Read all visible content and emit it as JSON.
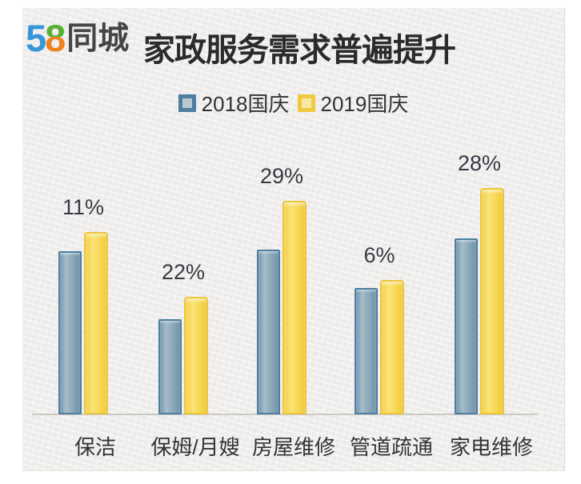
{
  "logo": {
    "part1": "5",
    "part2": "8",
    "part3": "同城"
  },
  "title": "家政服务需求普遍提升",
  "legend": {
    "items": [
      {
        "label": "2018国庆",
        "border_color": "#4e7ea0",
        "fill_color": "#b9c9d2"
      },
      {
        "label": "2019国庆",
        "border_color": "#f0c93e",
        "fill_color": "#f6e8a5"
      }
    ]
  },
  "chart_data": {
    "type": "bar",
    "title": "家政服务需求普遍提升",
    "categories": [
      "保洁",
      "保姆/月嫂",
      "房屋维修",
      "管道疏通",
      "家电维修"
    ],
    "series": [
      {
        "name": "2018国庆",
        "color": "#86a4b6",
        "values": [
          204,
          119,
          206,
          158,
          220
        ]
      },
      {
        "name": "2019国庆",
        "color": "#f6d34b",
        "values": [
          228,
          147,
          267,
          168,
          283
        ]
      }
    ],
    "growth_labels": [
      "11%",
      "22%",
      "29%",
      "6%",
      "28%"
    ],
    "growth_values_percent": [
      11,
      22,
      29,
      6,
      28
    ],
    "values_note": "No y-axis is shown; series values are relative bar heights in pixels. Percentage labels above each pair are the YoY growth of 2019国庆 vs 2018国庆.",
    "xlabel": "",
    "ylabel": "",
    "grid": false,
    "legend_position": "top",
    "axis_line_color": "#cbc9c5",
    "label_color": "#363a44"
  }
}
